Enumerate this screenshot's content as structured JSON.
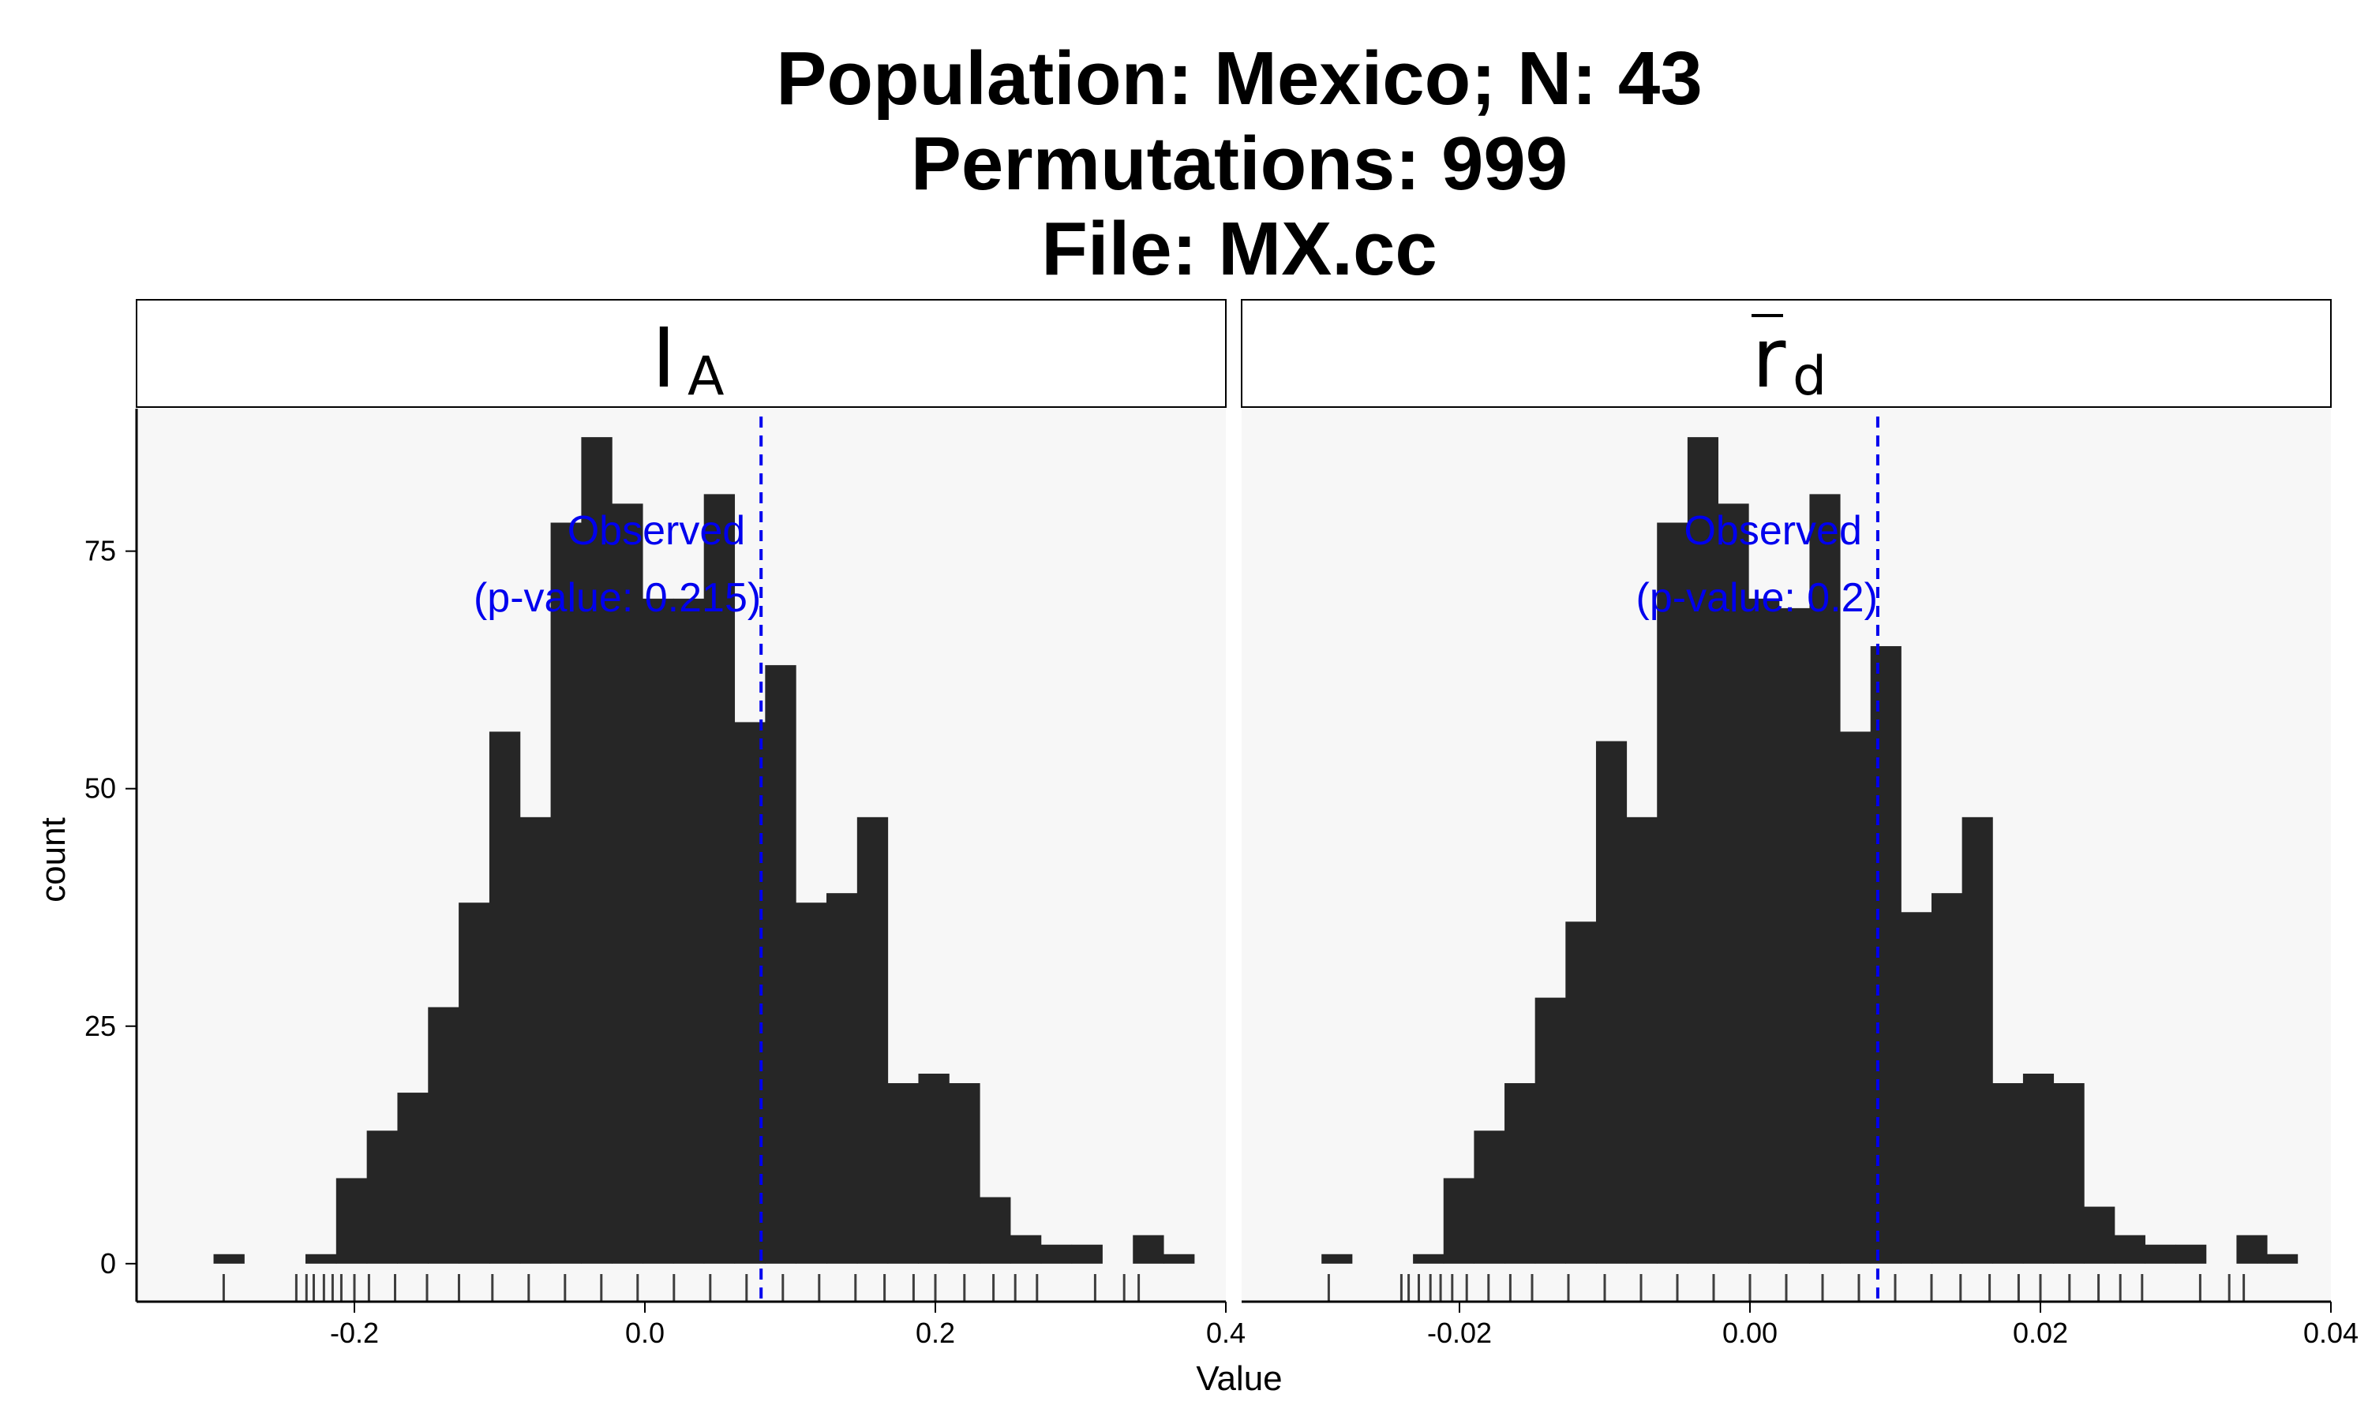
{
  "title_lines": [
    "Population: Mexico; N: 43",
    "Permutations: 999",
    "File: MX.cc"
  ],
  "chart_data": {
    "type": "histogram",
    "title": "Population: Mexico; N: 43\nPermutations: 999\nFile: MX.cc",
    "xlabel": "Value",
    "ylabel": "count",
    "y_ticks": [
      0,
      25,
      50,
      75
    ],
    "ylim": [
      -4,
      90
    ],
    "grid": false,
    "facets": [
      {
        "strip_label": "I",
        "strip_subscript": "A",
        "strip_overbar": false,
        "xlim": [
          -0.35,
          0.4
        ],
        "x_ticks": [
          -0.2,
          0.0,
          0.2,
          0.4
        ],
        "x_tick_labels": [
          "-0.2",
          "0.0",
          "0.2",
          "0.4"
        ],
        "bin_start": -0.297,
        "bin_width": 0.0211,
        "counts": [
          1,
          0,
          0,
          1,
          9,
          14,
          18,
          27,
          38,
          56,
          47,
          78,
          87,
          80,
          70,
          70,
          81,
          57,
          63,
          38,
          39,
          47,
          19,
          20,
          19,
          7,
          3,
          2,
          2,
          0,
          3,
          1
        ],
        "observed_value": 0.08,
        "annotation_lines": [
          "Observed",
          "(p-value: 0.215)"
        ],
        "rug": [
          -0.29,
          -0.24,
          -0.233,
          -0.228,
          -0.221,
          -0.215,
          -0.209,
          -0.2,
          -0.19,
          -0.172,
          -0.15,
          -0.128,
          -0.105,
          -0.08,
          -0.055,
          -0.03,
          -0.005,
          0.02,
          0.045,
          0.07,
          0.095,
          0.12,
          0.145,
          0.165,
          0.185,
          0.2,
          0.22,
          0.24,
          0.255,
          0.27,
          0.31,
          0.33,
          0.34
        ]
      },
      {
        "strip_label": "r",
        "strip_subscript": "d",
        "strip_overbar": true,
        "xlim": [
          -0.035,
          0.04
        ],
        "x_ticks": [
          -0.02,
          0.0,
          0.02,
          0.04
        ],
        "x_tick_labels": [
          "-0.02",
          "0.00",
          "0.02",
          "0.04"
        ],
        "bin_start": -0.0295,
        "bin_width": 0.0021,
        "counts": [
          1,
          0,
          0,
          1,
          9,
          14,
          19,
          28,
          36,
          55,
          47,
          78,
          87,
          80,
          70,
          69,
          81,
          56,
          65,
          37,
          39,
          47,
          19,
          20,
          19,
          6,
          3,
          2,
          2,
          0,
          3,
          1
        ],
        "observed_value": 0.0088,
        "annotation_lines": [
          "Observed",
          "(p-value: 0.2)"
        ],
        "rug": [
          -0.029,
          -0.024,
          -0.0235,
          -0.0228,
          -0.022,
          -0.0213,
          -0.0205,
          -0.0195,
          -0.018,
          -0.0165,
          -0.015,
          -0.0125,
          -0.01,
          -0.0075,
          -0.005,
          -0.0025,
          0.0,
          0.0025,
          0.005,
          0.0075,
          0.01,
          0.0125,
          0.0145,
          0.0165,
          0.0185,
          0.02,
          0.022,
          0.024,
          0.0255,
          0.027,
          0.031,
          0.033,
          0.034
        ]
      }
    ]
  }
}
